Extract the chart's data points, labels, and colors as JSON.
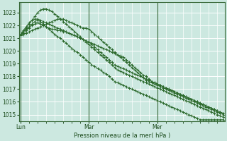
{
  "xlabel": "Pression niveau de la mer( hPa )",
  "background_color": "#cce8e0",
  "grid_color": "#ffffff",
  "line_color": "#2d6a2d",
  "ylim": [
    1014.5,
    1023.8
  ],
  "yticks": [
    1015,
    1016,
    1017,
    1018,
    1019,
    1020,
    1021,
    1022,
    1023
  ],
  "day_labels": [
    "Lun",
    "Mar",
    "Mer"
  ],
  "day_positions": [
    0,
    24,
    48
  ],
  "series": [
    [
      1021.3,
      1021.5,
      1021.7,
      1021.9,
      1022.1,
      1022.3,
      1022.4,
      1022.3,
      1022.1,
      1021.9,
      1021.7,
      1021.5,
      1021.3,
      1021.1,
      1021.0,
      1020.8,
      1020.6,
      1020.4,
      1020.2,
      1020.0,
      1019.9,
      1019.7,
      1019.5,
      1019.3,
      1019.1,
      1018.9,
      1018.8,
      1018.6,
      1018.5,
      1018.3,
      1018.2,
      1018.0,
      1017.8,
      1017.6,
      1017.5,
      1017.4,
      1017.3,
      1017.2,
      1017.1,
      1017.0,
      1016.9,
      1016.8,
      1016.7,
      1016.6,
      1016.5,
      1016.4,
      1016.3,
      1016.2,
      1016.1,
      1016.0,
      1015.9,
      1015.8,
      1015.7,
      1015.6,
      1015.5,
      1015.4,
      1015.3,
      1015.2,
      1015.1,
      1015.0,
      1014.9,
      1014.8,
      1014.7,
      1014.6,
      1014.6,
      1014.6,
      1014.6,
      1014.6,
      1014.6,
      1014.6,
      1014.6,
      1014.6
    ],
    [
      1021.2,
      1021.5,
      1021.8,
      1022.1,
      1022.4,
      1022.7,
      1023.0,
      1023.2,
      1023.3,
      1023.3,
      1023.2,
      1023.1,
      1022.9,
      1022.7,
      1022.5,
      1022.3,
      1022.1,
      1021.9,
      1021.7,
      1021.5,
      1021.3,
      1021.1,
      1020.9,
      1020.7,
      1020.5,
      1020.3,
      1020.1,
      1019.9,
      1019.7,
      1019.5,
      1019.3,
      1019.1,
      1018.9,
      1018.7,
      1018.5,
      1018.4,
      1018.3,
      1018.2,
      1018.1,
      1018.0,
      1017.9,
      1017.8,
      1017.7,
      1017.6,
      1017.5,
      1017.4,
      1017.3,
      1017.2,
      1017.1,
      1017.0,
      1016.9,
      1016.8,
      1016.7,
      1016.6,
      1016.5,
      1016.4,
      1016.3,
      1016.2,
      1016.1,
      1016.0,
      1015.9,
      1015.8,
      1015.7,
      1015.6,
      1015.5,
      1015.4,
      1015.3,
      1015.2,
      1015.1,
      1015.0,
      1014.9,
      1014.8
    ],
    [
      1021.3,
      1021.6,
      1021.9,
      1022.2,
      1022.4,
      1022.5,
      1022.5,
      1022.4,
      1022.3,
      1022.2,
      1022.1,
      1022.0,
      1021.9,
      1021.8,
      1021.7,
      1021.6,
      1021.5,
      1021.4,
      1021.3,
      1021.2,
      1021.1,
      1021.0,
      1020.9,
      1020.8,
      1020.7,
      1020.6,
      1020.5,
      1020.4,
      1020.3,
      1020.2,
      1020.1,
      1020.0,
      1019.9,
      1019.8,
      1019.7,
      1019.6,
      1019.5,
      1019.3,
      1019.1,
      1018.9,
      1018.7,
      1018.5,
      1018.3,
      1018.1,
      1018.0,
      1017.8,
      1017.6,
      1017.5,
      1017.4,
      1017.3,
      1017.2,
      1017.1,
      1017.0,
      1016.9,
      1016.8,
      1016.7,
      1016.6,
      1016.5,
      1016.4,
      1016.3,
      1016.2,
      1016.1,
      1016.0,
      1015.9,
      1015.8,
      1015.7,
      1015.6,
      1015.5,
      1015.4,
      1015.3,
      1015.2,
      1015.1
    ],
    [
      1021.2,
      1021.4,
      1021.6,
      1021.8,
      1022.0,
      1022.1,
      1022.2,
      1022.1,
      1022.0,
      1021.9,
      1021.8,
      1021.7,
      1021.7,
      1021.6,
      1021.6,
      1021.5,
      1021.5,
      1021.4,
      1021.3,
      1021.2,
      1021.1,
      1021.0,
      1020.9,
      1020.8,
      1020.7,
      1020.5,
      1020.3,
      1020.1,
      1019.9,
      1019.7,
      1019.5,
      1019.3,
      1019.1,
      1018.9,
      1018.8,
      1018.7,
      1018.6,
      1018.5,
      1018.4,
      1018.3,
      1018.2,
      1018.1,
      1018.0,
      1017.9,
      1017.8,
      1017.7,
      1017.6,
      1017.5,
      1017.4,
      1017.3,
      1017.2,
      1017.1,
      1017.0,
      1016.9,
      1016.8,
      1016.7,
      1016.6,
      1016.5,
      1016.4,
      1016.3,
      1016.2,
      1016.1,
      1016.0,
      1015.9,
      1015.8,
      1015.7,
      1015.6,
      1015.5,
      1015.4,
      1015.3,
      1015.2,
      1015.1
    ],
    [
      1021.2,
      1021.3,
      1021.4,
      1021.5,
      1021.6,
      1021.7,
      1021.8,
      1021.9,
      1022.0,
      1022.1,
      1022.2,
      1022.3,
      1022.4,
      1022.5,
      1022.5,
      1022.5,
      1022.4,
      1022.3,
      1022.2,
      1022.1,
      1022.0,
      1021.9,
      1021.8,
      1021.8,
      1021.7,
      1021.5,
      1021.3,
      1021.1,
      1020.9,
      1020.7,
      1020.5,
      1020.3,
      1020.1,
      1019.9,
      1019.7,
      1019.5,
      1019.3,
      1019.1,
      1018.9,
      1018.7,
      1018.5,
      1018.3,
      1018.1,
      1017.9,
      1017.7,
      1017.6,
      1017.5,
      1017.4,
      1017.3,
      1017.2,
      1017.1,
      1017.0,
      1016.9,
      1016.8,
      1016.7,
      1016.6,
      1016.5,
      1016.4,
      1016.3,
      1016.2,
      1016.1,
      1016.0,
      1015.9,
      1015.8,
      1015.7,
      1015.6,
      1015.5,
      1015.4,
      1015.3,
      1015.2,
      1015.1,
      1015.0
    ]
  ]
}
